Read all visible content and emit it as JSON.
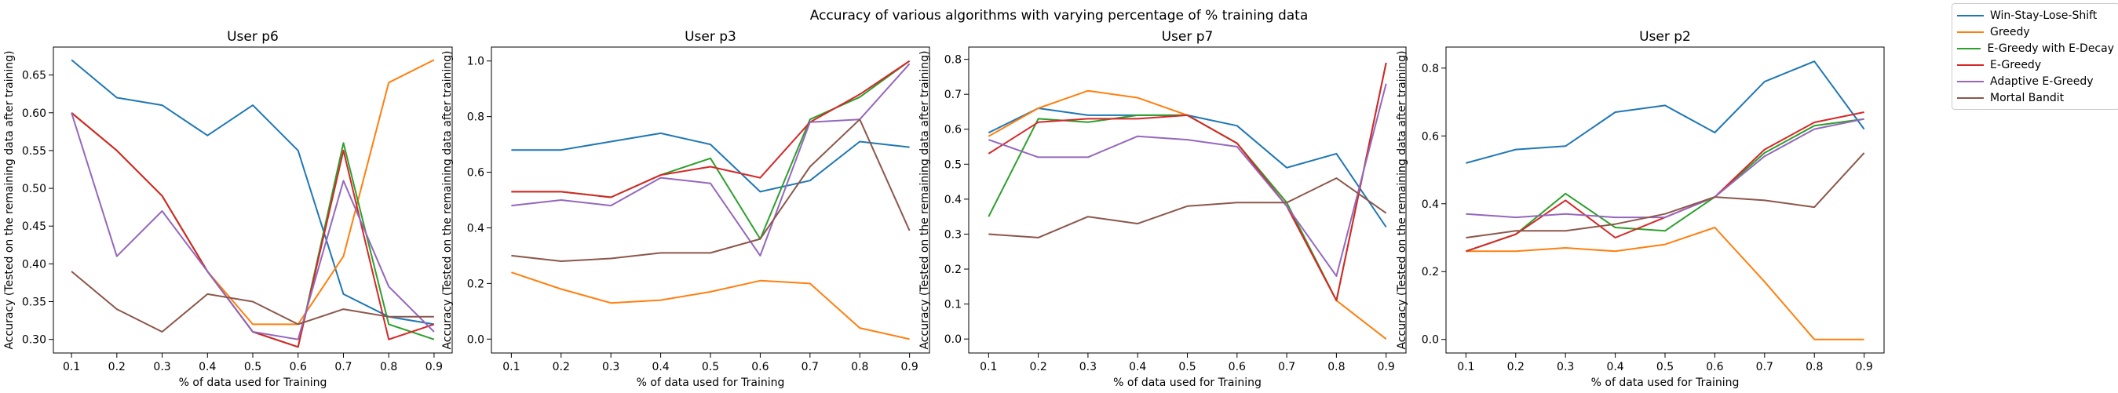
{
  "title": "Accuracy of various algorithms with varying percentage of % training data",
  "legend": [
    {
      "name": "Win-Stay-Lose-Shift",
      "color": "#1f77b4"
    },
    {
      "name": "Greedy",
      "color": "#ff7f0e"
    },
    {
      "name": "E-Greedy with E-Decay",
      "color": "#2ca02c"
    },
    {
      "name": "E-Greedy",
      "color": "#d62728"
    },
    {
      "name": "Adaptive E-Greedy",
      "color": "#9467bd"
    },
    {
      "name": "Mortal Bandit",
      "color": "#8c564b"
    }
  ],
  "chart_data": [
    {
      "type": "line",
      "title": "User p6",
      "xlabel": "% of data used for Training",
      "ylabel": "Accuracy (Tested on the remaining data after training)",
      "x": [
        0.1,
        0.2,
        0.3,
        0.4,
        0.5,
        0.6,
        0.7,
        0.8,
        0.9
      ],
      "xticks": [
        "0.1",
        "0.2",
        "0.3",
        "0.4",
        "0.5",
        "0.6",
        "0.7",
        "0.8",
        "0.9"
      ],
      "xlim": [
        0.06,
        0.94
      ],
      "ylim": [
        0.282,
        0.687
      ],
      "yticks": [
        0.3,
        0.35,
        0.4,
        0.45,
        0.5,
        0.55,
        0.6,
        0.65
      ],
      "ytick_labels": [
        "0.30",
        "0.35",
        "0.40",
        "0.45",
        "0.50",
        "0.55",
        "0.60",
        "0.65"
      ],
      "series": [
        {
          "name": "Win-Stay-Lose-Shift",
          "values": [
            0.67,
            0.62,
            0.61,
            0.57,
            0.61,
            0.55,
            0.36,
            0.33,
            0.32
          ]
        },
        {
          "name": "Greedy",
          "values": [
            0.6,
            0.55,
            0.49,
            0.39,
            0.32,
            0.32,
            0.41,
            0.64,
            0.67
          ]
        },
        {
          "name": "E-Greedy with E-Decay",
          "values": [
            0.6,
            0.55,
            0.49,
            0.39,
            0.31,
            0.29,
            0.56,
            0.32,
            0.3
          ]
        },
        {
          "name": "E-Greedy",
          "values": [
            0.6,
            0.55,
            0.49,
            0.39,
            0.31,
            0.29,
            0.55,
            0.3,
            0.32
          ]
        },
        {
          "name": "Adaptive E-Greedy",
          "values": [
            0.6,
            0.41,
            0.47,
            0.39,
            0.31,
            0.3,
            0.51,
            0.37,
            0.31
          ]
        },
        {
          "name": "Mortal Bandit",
          "values": [
            0.39,
            0.34,
            0.31,
            0.36,
            0.35,
            0.32,
            0.34,
            0.33,
            0.33
          ]
        }
      ]
    },
    {
      "type": "line",
      "title": "User p3",
      "xlabel": "% of data used for Training",
      "ylabel": "Accuracy (Tested on the remaining data after training)",
      "x": [
        0.1,
        0.2,
        0.3,
        0.4,
        0.5,
        0.6,
        0.7,
        0.8,
        0.9
      ],
      "xticks": [
        "0.1",
        "0.2",
        "0.3",
        "0.4",
        "0.5",
        "0.6",
        "0.7",
        "0.8",
        "0.9"
      ],
      "xlim": [
        0.06,
        0.94
      ],
      "ylim": [
        -0.05,
        1.05
      ],
      "yticks": [
        0.0,
        0.2,
        0.4,
        0.6,
        0.8,
        1.0
      ],
      "ytick_labels": [
        "0.0",
        "0.2",
        "0.4",
        "0.6",
        "0.8",
        "1.0"
      ],
      "series": [
        {
          "name": "Win-Stay-Lose-Shift",
          "values": [
            0.68,
            0.68,
            0.71,
            0.74,
            0.7,
            0.53,
            0.57,
            0.71,
            0.69
          ]
        },
        {
          "name": "Greedy",
          "values": [
            0.24,
            0.18,
            0.13,
            0.14,
            0.17,
            0.21,
            0.2,
            0.04,
            0.0
          ]
        },
        {
          "name": "E-Greedy with E-Decay",
          "values": [
            0.53,
            0.53,
            0.51,
            0.59,
            0.65,
            0.36,
            0.79,
            0.87,
            1.0
          ]
        },
        {
          "name": "E-Greedy",
          "values": [
            0.53,
            0.53,
            0.51,
            0.59,
            0.62,
            0.58,
            0.78,
            0.88,
            1.0
          ]
        },
        {
          "name": "Adaptive E-Greedy",
          "values": [
            0.48,
            0.5,
            0.48,
            0.58,
            0.56,
            0.3,
            0.78,
            0.79,
            0.99
          ]
        },
        {
          "name": "Mortal Bandit",
          "values": [
            0.3,
            0.28,
            0.29,
            0.31,
            0.31,
            0.36,
            0.62,
            0.79,
            0.39
          ]
        }
      ]
    },
    {
      "type": "line",
      "title": "User p7",
      "xlabel": "% of data used for Training",
      "ylabel": "Accuracy (Tested on the remaining data after training)",
      "x": [
        0.1,
        0.2,
        0.3,
        0.4,
        0.5,
        0.6,
        0.7,
        0.8,
        0.9
      ],
      "xticks": [
        "0.1",
        "0.2",
        "0.3",
        "0.4",
        "0.5",
        "0.6",
        "0.7",
        "0.8",
        "0.9"
      ],
      "xlim": [
        0.06,
        0.94
      ],
      "ylim": [
        -0.04,
        0.835
      ],
      "yticks": [
        0.0,
        0.1,
        0.2,
        0.3,
        0.4,
        0.5,
        0.6,
        0.7,
        0.8
      ],
      "ytick_labels": [
        "0.0",
        "0.1",
        "0.2",
        "0.3",
        "0.4",
        "0.5",
        "0.6",
        "0.7",
        "0.8"
      ],
      "series": [
        {
          "name": "Win-Stay-Lose-Shift",
          "values": [
            0.59,
            0.66,
            0.64,
            0.64,
            0.64,
            0.61,
            0.49,
            0.53,
            0.32
          ]
        },
        {
          "name": "Greedy",
          "values": [
            0.58,
            0.66,
            0.71,
            0.69,
            0.64,
            0.56,
            0.39,
            0.11,
            0.0
          ]
        },
        {
          "name": "E-Greedy with E-Decay",
          "values": [
            0.35,
            0.63,
            0.62,
            0.64,
            0.64,
            0.56,
            0.39,
            0.11,
            0.79
          ]
        },
        {
          "name": "E-Greedy",
          "values": [
            0.53,
            0.62,
            0.63,
            0.63,
            0.64,
            0.56,
            0.38,
            0.11,
            0.79
          ]
        },
        {
          "name": "Adaptive E-Greedy",
          "values": [
            0.57,
            0.52,
            0.52,
            0.58,
            0.57,
            0.55,
            0.38,
            0.18,
            0.73
          ]
        },
        {
          "name": "Mortal Bandit",
          "values": [
            0.3,
            0.29,
            0.35,
            0.33,
            0.38,
            0.39,
            0.39,
            0.46,
            0.36
          ]
        }
      ]
    },
    {
      "type": "line",
      "title": "User p2",
      "xlabel": "% of data used for Training",
      "ylabel": "Accuracy (Tested on the remaining data after training)",
      "x": [
        0.1,
        0.2,
        0.3,
        0.4,
        0.5,
        0.6,
        0.7,
        0.8,
        0.9
      ],
      "xticks": [
        "0.1",
        "0.2",
        "0.3",
        "0.4",
        "0.5",
        "0.6",
        "0.7",
        "0.8",
        "0.9"
      ],
      "xlim": [
        0.06,
        0.94
      ],
      "ylim": [
        -0.04,
        0.862
      ],
      "yticks": [
        0.0,
        0.2,
        0.4,
        0.6,
        0.8
      ],
      "ytick_labels": [
        "0.0",
        "0.2",
        "0.4",
        "0.6",
        "0.8"
      ],
      "series": [
        {
          "name": "Win-Stay-Lose-Shift",
          "values": [
            0.52,
            0.56,
            0.57,
            0.67,
            0.69,
            0.61,
            0.76,
            0.82,
            0.62
          ]
        },
        {
          "name": "Greedy",
          "values": [
            0.26,
            0.26,
            0.27,
            0.26,
            0.28,
            0.33,
            0.17,
            0.0,
            0.0
          ]
        },
        {
          "name": "E-Greedy with E-Decay",
          "values": [
            0.26,
            0.31,
            0.43,
            0.33,
            0.32,
            0.42,
            0.55,
            0.63,
            0.65
          ]
        },
        {
          "name": "E-Greedy",
          "values": [
            0.26,
            0.31,
            0.41,
            0.3,
            0.36,
            0.42,
            0.56,
            0.64,
            0.67
          ]
        },
        {
          "name": "Adaptive E-Greedy",
          "values": [
            0.37,
            0.36,
            0.37,
            0.36,
            0.36,
            0.42,
            0.54,
            0.62,
            0.65
          ]
        },
        {
          "name": "Mortal Bandit",
          "values": [
            0.3,
            0.32,
            0.32,
            0.34,
            0.37,
            0.42,
            0.41,
            0.39,
            0.55
          ]
        }
      ]
    }
  ]
}
